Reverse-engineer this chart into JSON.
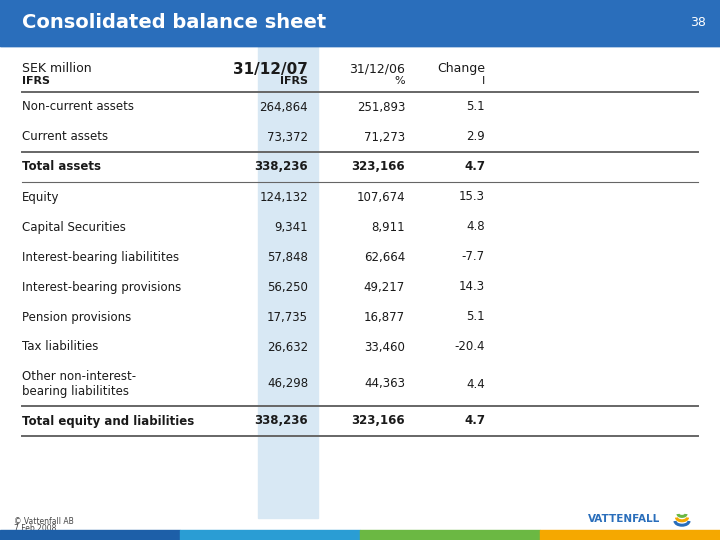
{
  "title": "Consolidated balance sheet",
  "slide_number": "38",
  "header_bg": "#2A6EBB",
  "header_text_color": "#FFFFFF",
  "col_header_row1_labels": [
    "SEK million",
    "31/12/07",
    "31/12/06",
    "Change"
  ],
  "col_header_row1_bold": [
    false,
    true,
    false,
    false
  ],
  "col_header_row2_labels": [
    "IFRS",
    "IFRS",
    "%",
    "I"
  ],
  "col_header_row2_bold": [
    true,
    true,
    false,
    false
  ],
  "rows": [
    {
      "label": "Non-current assets",
      "val07": "264,864",
      "val06": "251,893",
      "change": "5.1",
      "bold": false,
      "separator_above": true,
      "double_line": false
    },
    {
      "label": "Current assets",
      "val07": "73,372",
      "val06": "71,273",
      "change": "2.9",
      "bold": false,
      "separator_above": false,
      "double_line": false
    },
    {
      "label": "Total assets",
      "val07": "338,236",
      "val06": "323,166",
      "change": "4.7",
      "bold": true,
      "separator_above": true,
      "double_line": false
    },
    {
      "label": "Equity",
      "val07": "124,132",
      "val06": "107,674",
      "change": "15.3",
      "bold": false,
      "separator_above": true,
      "double_line": false
    },
    {
      "label": "Capital Securities",
      "val07": "9,341",
      "val06": "8,911",
      "change": "4.8",
      "bold": false,
      "separator_above": false,
      "double_line": false
    },
    {
      "label": "Interest-bearing liabilitites",
      "val07": "57,848",
      "val06": "62,664",
      "change": "-7.7",
      "bold": false,
      "separator_above": false,
      "double_line": false
    },
    {
      "label": "Interest-bearing provisions",
      "val07": "56,250",
      "val06": "49,217",
      "change": "14.3",
      "bold": false,
      "separator_above": false,
      "double_line": false
    },
    {
      "label": "Pension provisions",
      "val07": "17,735",
      "val06": "16,877",
      "change": "5.1",
      "bold": false,
      "separator_above": false,
      "double_line": false
    },
    {
      "label": "Tax liabilities",
      "val07": "26,632",
      "val06": "33,460",
      "change": "-20.4",
      "bold": false,
      "separator_above": false,
      "double_line": false
    },
    {
      "label": "Other non-interest-\nbearing liabilitites",
      "val07": "46,298",
      "val06": "44,363",
      "change": "4.4",
      "bold": false,
      "separator_above": false,
      "double_line": true
    },
    {
      "label": "Total equity and liabilities",
      "val07": "338,236",
      "val06": "323,166",
      "change": "4.7",
      "bold": true,
      "separator_above": true,
      "double_line": false
    }
  ],
  "hi_col_color": "#D8E8F4",
  "bg_color": "#FFFFFF",
  "body_text_color": "#1A1A1A",
  "sep_color": "#666666",
  "bottom_bar_colors": [
    "#1D5FA8",
    "#2A9DD4",
    "#6BB843",
    "#F5A800"
  ],
  "footer_text_line1": "© Vattenfall AB",
  "footer_text_line2": "7 Feb 2008",
  "font_size_body": 8.5,
  "font_size_title": 14,
  "font_size_col_h": 9
}
